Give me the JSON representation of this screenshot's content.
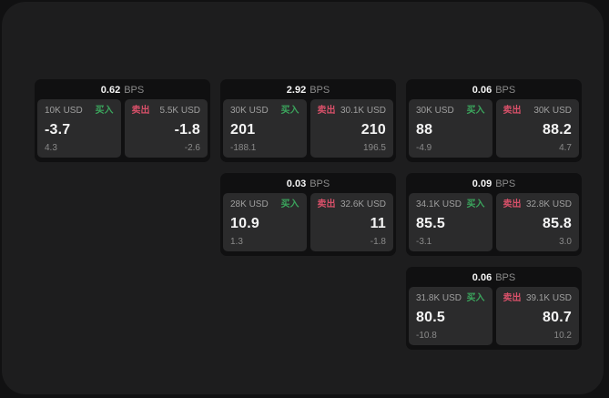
{
  "colors": {
    "buy_green": "#3ba55d",
    "sell_red": "#d75069",
    "panel_bg": "#1d1d1e",
    "card_bg": "#101011",
    "tile_bg": "#2b2b2c"
  },
  "cards": [
    {
      "spread": "0.62",
      "unit": "BPS",
      "buy": {
        "notional": "10K USD",
        "side": "买入",
        "price": "-3.7",
        "sub": "4.3"
      },
      "sell": {
        "side": "卖出",
        "notional": "5.5K USD",
        "price": "-1.8",
        "sub": "-2.6"
      }
    },
    {
      "spread": "2.92",
      "unit": "BPS",
      "buy": {
        "notional": "30K USD",
        "side": "买入",
        "price": "201",
        "sub": "-188.1"
      },
      "sell": {
        "side": "卖出",
        "notional": "30.1K USD",
        "price": "210",
        "sub": "196.5"
      }
    },
    {
      "spread": "0.06",
      "unit": "BPS",
      "buy": {
        "notional": "30K USD",
        "side": "买入",
        "price": "88",
        "sub": "-4.9"
      },
      "sell": {
        "side": "卖出",
        "notional": "30K USD",
        "price": "88.2",
        "sub": "4.7"
      }
    },
    {
      "spread": "0.03",
      "unit": "BPS",
      "buy": {
        "notional": "28K USD",
        "side": "买入",
        "price": "10.9",
        "sub": "1.3"
      },
      "sell": {
        "side": "卖出",
        "notional": "32.6K USD",
        "price": "11",
        "sub": "-1.8"
      }
    },
    {
      "spread": "0.09",
      "unit": "BPS",
      "buy": {
        "notional": "34.1K USD",
        "side": "买入",
        "price": "85.5",
        "sub": "-3.1"
      },
      "sell": {
        "side": "卖出",
        "notional": "32.8K USD",
        "price": "85.8",
        "sub": "3.0"
      }
    },
    {
      "spread": "0.06",
      "unit": "BPS",
      "buy": {
        "notional": "31.8K USD",
        "side": "买入",
        "price": "80.5",
        "sub": "-10.8"
      },
      "sell": {
        "side": "卖出",
        "notional": "39.1K USD",
        "price": "80.7",
        "sub": "10.2"
      }
    }
  ]
}
